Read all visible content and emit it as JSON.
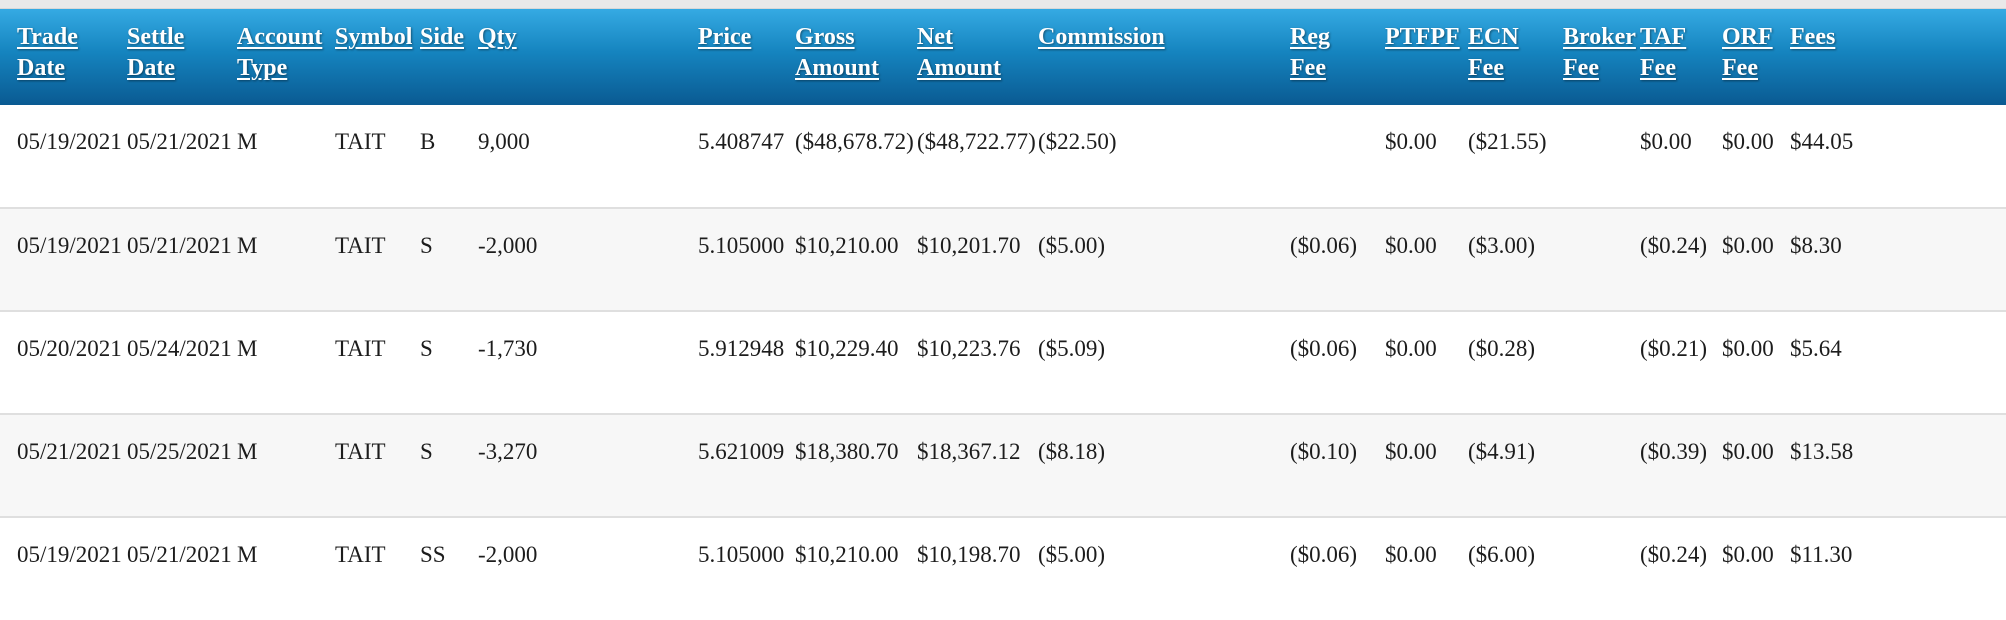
{
  "table": {
    "columns": [
      {
        "id": "trade-date",
        "label": "Trade\nDate"
      },
      {
        "id": "settle-date",
        "label": "Settle\nDate"
      },
      {
        "id": "account-type",
        "label": "Account\nType"
      },
      {
        "id": "symbol",
        "label": "Symbol"
      },
      {
        "id": "side",
        "label": "Side"
      },
      {
        "id": "qty",
        "label": "Qty"
      },
      {
        "id": "price",
        "label": "Price"
      },
      {
        "id": "gross-amount",
        "label": "Gross\nAmount"
      },
      {
        "id": "net-amount",
        "label": "Net\nAmount"
      },
      {
        "id": "commission",
        "label": "Commission"
      },
      {
        "id": "reg-fee",
        "label": "Reg\nFee"
      },
      {
        "id": "ptfpf",
        "label": "PTFPF"
      },
      {
        "id": "ecn-fee",
        "label": "ECN\nFee"
      },
      {
        "id": "broker-fee",
        "label": "Broker\nFee"
      },
      {
        "id": "taf-fee",
        "label": "TAF\nFee"
      },
      {
        "id": "orf-fee",
        "label": "ORF\nFee"
      },
      {
        "id": "fees",
        "label": "Fees"
      }
    ],
    "rows": [
      [
        "05/19/2021",
        "05/21/2021",
        "M",
        "TAIT",
        "B",
        "9,000",
        "5.408747",
        "($48,678.72)",
        "($48,722.77)",
        "($22.50)",
        "",
        "$0.00",
        "($21.55)",
        "",
        "$0.00",
        "$0.00",
        "$44.05"
      ],
      [
        "05/19/2021",
        "05/21/2021",
        "M",
        "TAIT",
        "S",
        "-2,000",
        "5.105000",
        "$10,210.00",
        "$10,201.70",
        "($5.00)",
        "($0.06)",
        "$0.00",
        "($3.00)",
        "",
        "($0.24)",
        "$0.00",
        "$8.30"
      ],
      [
        "05/20/2021",
        "05/24/2021",
        "M",
        "TAIT",
        "S",
        "-1,730",
        "5.912948",
        "$10,229.40",
        "$10,223.76",
        "($5.09)",
        "($0.06)",
        "$0.00",
        "($0.28)",
        "",
        "($0.21)",
        "$0.00",
        "$5.64"
      ],
      [
        "05/21/2021",
        "05/25/2021",
        "M",
        "TAIT",
        "S",
        "-3,270",
        "5.621009",
        "$18,380.70",
        "$18,367.12",
        "($8.18)",
        "($0.10)",
        "$0.00",
        "($4.91)",
        "",
        "($0.39)",
        "$0.00",
        "$13.58"
      ],
      [
        "05/19/2021",
        "05/21/2021",
        "M",
        "TAIT",
        "SS",
        "-2,000",
        "5.105000",
        "$10,210.00",
        "$10,198.70",
        "($5.00)",
        "($0.06)",
        "$0.00",
        "($6.00)",
        "",
        "($0.24)",
        "$0.00",
        "$11.30"
      ]
    ]
  },
  "colors": {
    "header_gradient_top": "#35aae3",
    "header_gradient_mid": "#1584bf",
    "header_gradient_bottom": "#0a5a92",
    "row_alt_bg": "#f7f7f7",
    "row_border": "#dfdfdf",
    "text": "#1c1c1c",
    "header_text": "#ffffff",
    "top_strip": "#e9e9e9"
  }
}
